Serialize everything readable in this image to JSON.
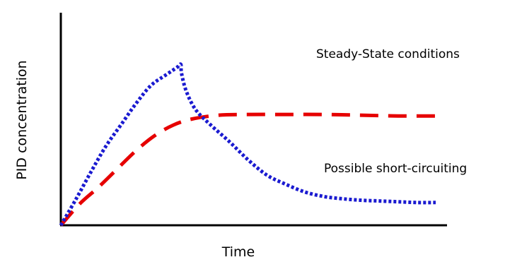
{
  "chart_data": {
    "type": "line",
    "xlabel": "Time",
    "ylabel": "PID concentration",
    "xlim": [
      0,
      100
    ],
    "ylim": [
      0,
      100
    ],
    "grid": false,
    "ticks": false,
    "series": [
      {
        "color": "#e60000",
        "line_style": "dashed",
        "points": [
          [
            0,
            0
          ],
          [
            5,
            14
          ],
          [
            10,
            25
          ],
          [
            15,
            37
          ],
          [
            20,
            49
          ],
          [
            25,
            59
          ],
          [
            30,
            66
          ],
          [
            35,
            70
          ],
          [
            42,
            72.5
          ],
          [
            50,
            73
          ],
          [
            60,
            73
          ],
          [
            70,
            73
          ],
          [
            80,
            72.5
          ],
          [
            90,
            72
          ],
          [
            100,
            72
          ]
        ]
      },
      {
        "color": "#1a1ad0",
        "line_style": "dotted",
        "points": [
          [
            0,
            0
          ],
          [
            4,
            17
          ],
          [
            8,
            35
          ],
          [
            12,
            52
          ],
          [
            16,
            66
          ],
          [
            20,
            80
          ],
          [
            24,
            92
          ],
          [
            28,
            99
          ],
          [
            31,
            104
          ],
          [
            32,
            106
          ],
          [
            32.2,
            100
          ],
          [
            33.5,
            88
          ],
          [
            36,
            76
          ],
          [
            40,
            66
          ],
          [
            45,
            55
          ],
          [
            50,
            43
          ],
          [
            55,
            33
          ],
          [
            60,
            27
          ],
          [
            65,
            22
          ],
          [
            70,
            19
          ],
          [
            75,
            17.5
          ],
          [
            80,
            16.5
          ],
          [
            85,
            16
          ],
          [
            90,
            15.5
          ],
          [
            95,
            15
          ],
          [
            100,
            15
          ]
        ]
      }
    ],
    "annotations": [
      {
        "text": "Steady-State conditions"
      },
      {
        "text": "Possible short-circuiting"
      }
    ]
  }
}
